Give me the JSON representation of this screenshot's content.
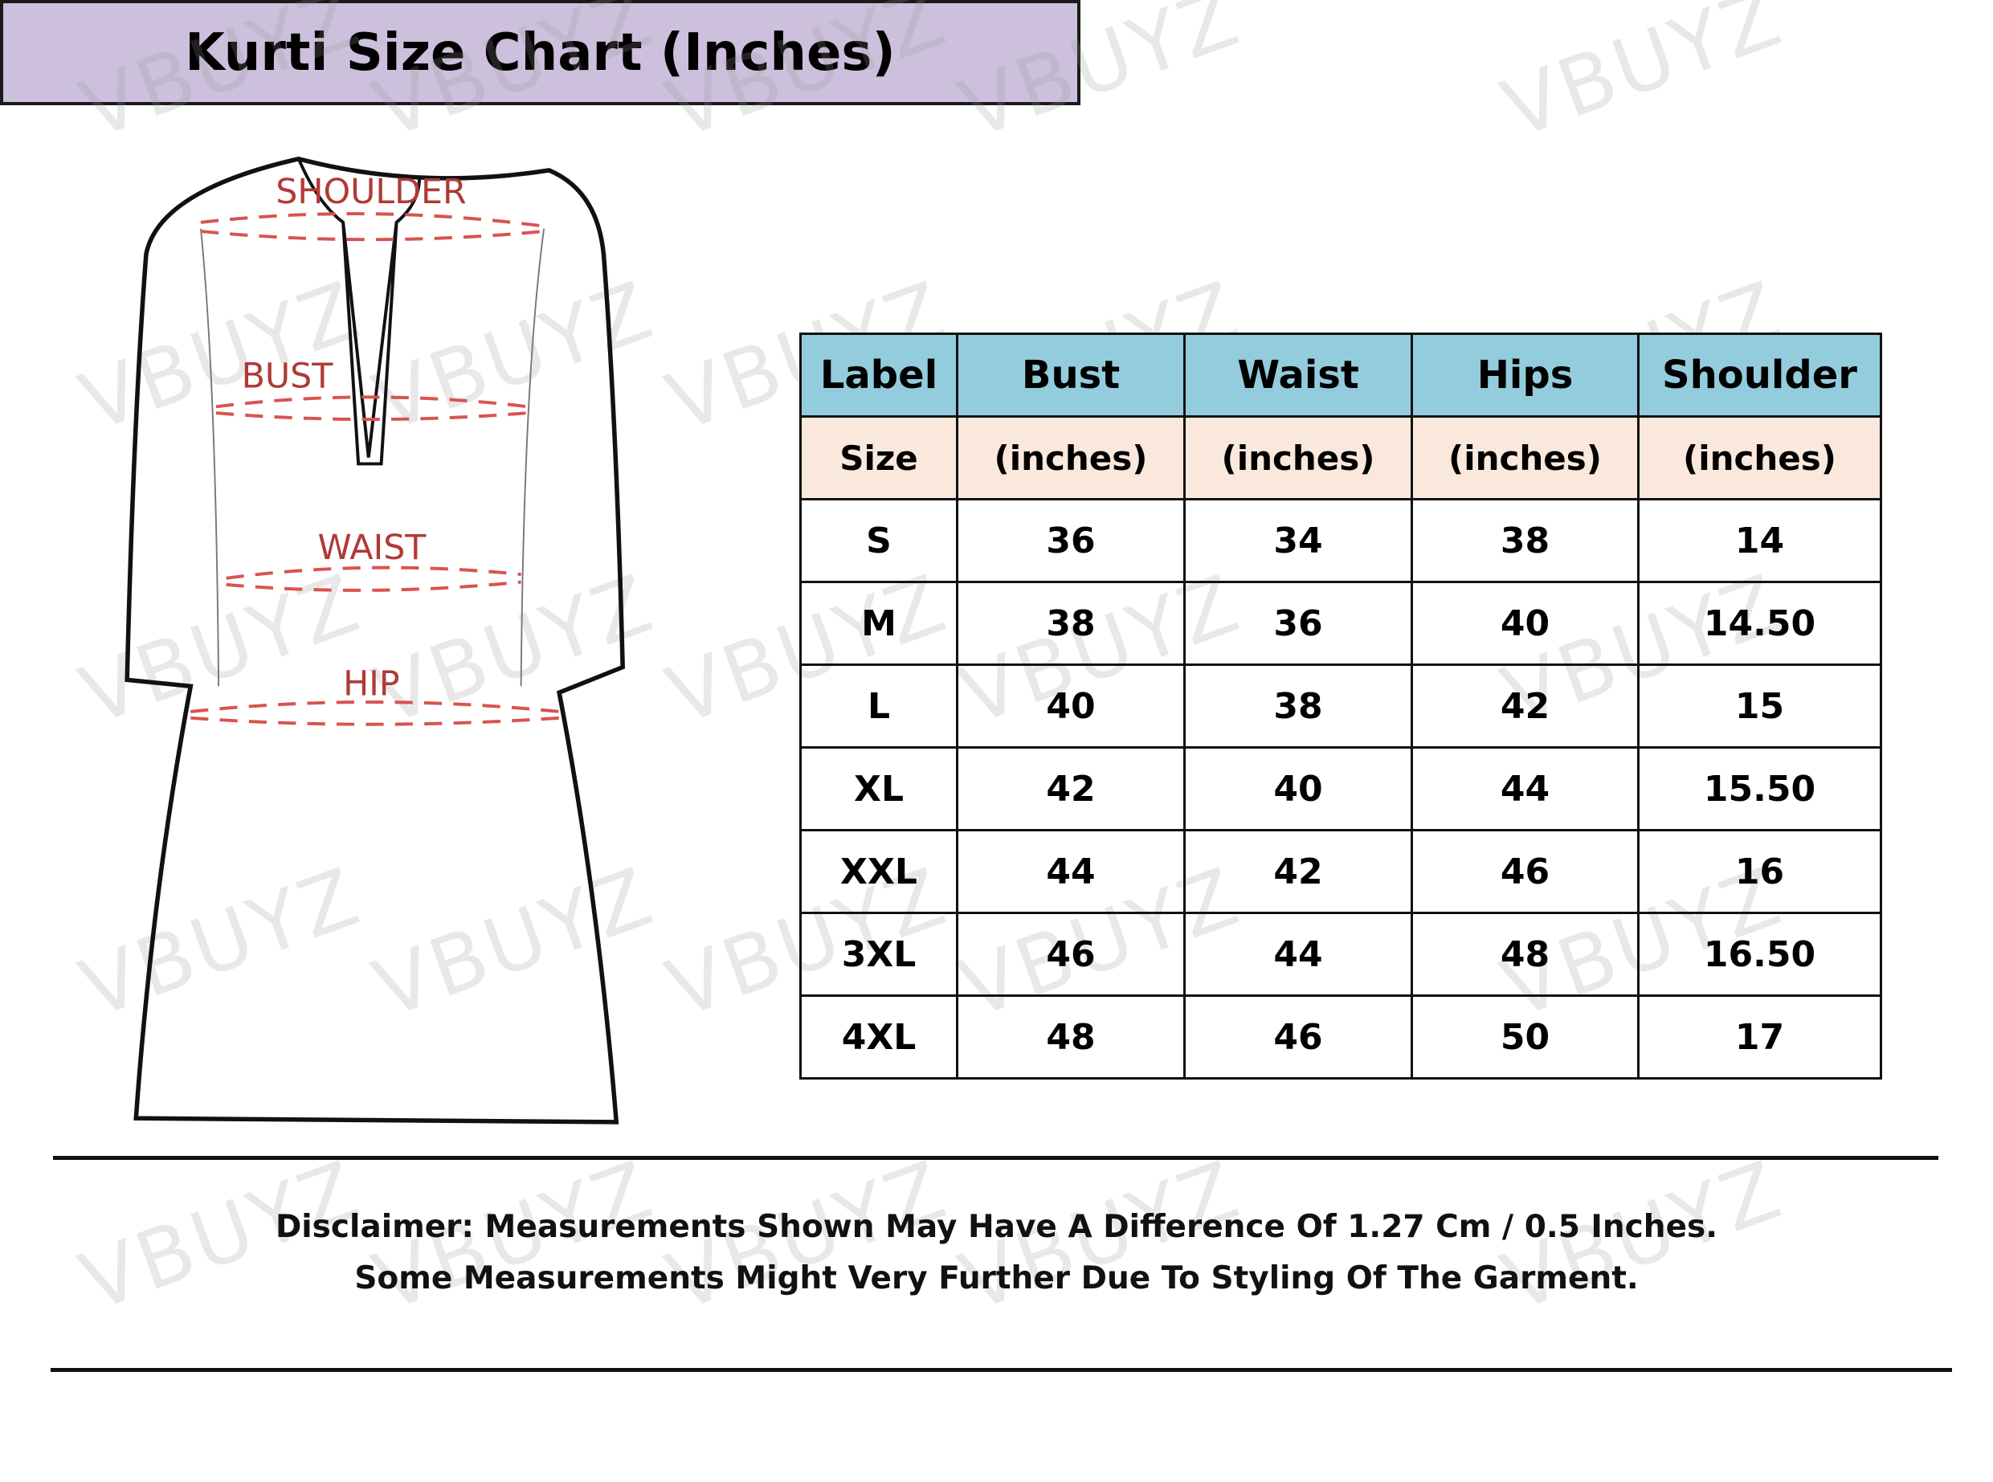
{
  "watermark": "VBUYZ",
  "diagram": {
    "labels": [
      "SHOULDER",
      "BUST",
      "WAIST",
      "HIP"
    ],
    "measure_line_color": "#d9534f",
    "label_color": "#b03a36"
  },
  "title": "Kurti Size Chart (Inches)",
  "colors": {
    "title_bg": "#ccc0dc",
    "header_bg": "#93cddd",
    "subheader_bg": "#fbe8dc"
  },
  "table": {
    "headers": [
      "Label",
      "Bust",
      "Waist",
      "Hips",
      "Shoulder"
    ],
    "subheaders": [
      "Size",
      "(inches)",
      "(inches)",
      "(inches)",
      "(inches)"
    ],
    "rows": [
      [
        "S",
        "36",
        "34",
        "38",
        "14"
      ],
      [
        "M",
        "38",
        "36",
        "40",
        "14.50"
      ],
      [
        "L",
        "40",
        "38",
        "42",
        "15"
      ],
      [
        "XL",
        "42",
        "40",
        "44",
        "15.50"
      ],
      [
        "XXL",
        "44",
        "42",
        "46",
        "16"
      ],
      [
        "3XL",
        "46",
        "44",
        "48",
        "16.50"
      ],
      [
        "4XL",
        "48",
        "46",
        "50",
        "17"
      ]
    ]
  },
  "disclaimer": {
    "line1": "Disclaimer: Measurements Shown May Have A Difference Of 1.27 Cm / 0.5 Inches.",
    "line2": "Some Measurements Might Very Further Due To Styling Of The Garment."
  }
}
